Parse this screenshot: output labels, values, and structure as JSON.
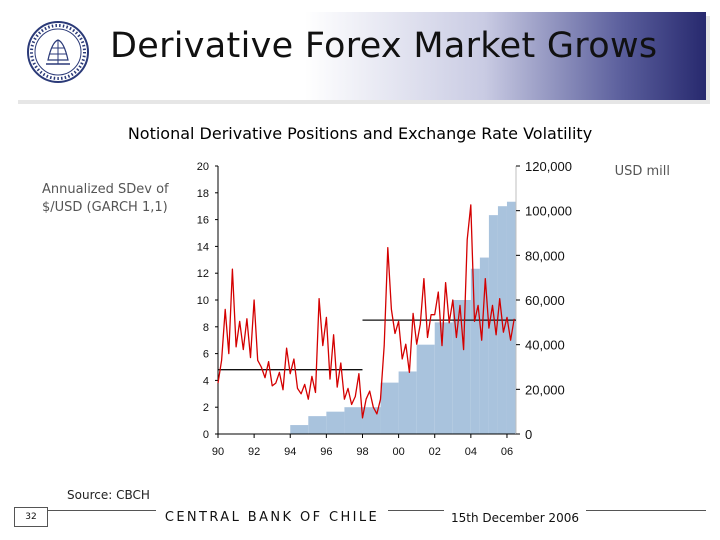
{
  "slide": {
    "title": "Derivative Forex Market Grows",
    "chart_title": "Notional Derivative Positions and Exchange Rate Volatility",
    "left_unit_line1": "Annualized SDev of",
    "left_unit_line2": "$/USD (GARCH 1,1)",
    "right_unit": "USD mill",
    "source": "Source: CBCH",
    "page_number": "32",
    "bank_name": "CENTRAL BANK OF CHILE",
    "date": "15th December 2006"
  },
  "colors": {
    "volatility_line": "#d40000",
    "positions_bars": "#a9c3dd",
    "average_lines": "#111111",
    "title_band_dark": "#27296e"
  },
  "chart_data": {
    "type": "bar+line",
    "title": "Notional Derivative Positions and Exchange Rate Volatility",
    "x_ticks": [
      "90",
      "92",
      "94",
      "96",
      "98",
      "00",
      "02",
      "04",
      "06"
    ],
    "y_left": {
      "label": "Annualized SDev of $/USD (GARCH 1,1)",
      "range": [
        0,
        20
      ],
      "ticks": [
        "0",
        "2",
        "4",
        "6",
        "8",
        "10",
        "12",
        "14",
        "16",
        "18",
        "20"
      ]
    },
    "y_right": {
      "label": "USD mill",
      "range": [
        0,
        120000
      ],
      "ticks": [
        "0",
        "20,000",
        "40,000",
        "60,000",
        "80,000",
        "100,000",
        "120,000"
      ]
    },
    "bars_usd_mill": [
      {
        "start": 1994.0,
        "end": 1995.0,
        "value": 4000
      },
      {
        "start": 1995.0,
        "end": 1996.0,
        "value": 8000
      },
      {
        "start": 1996.0,
        "end": 1997.0,
        "value": 10000
      },
      {
        "start": 1997.0,
        "end": 1998.0,
        "value": 12000
      },
      {
        "start": 1998.0,
        "end": 1999.0,
        "value": 12000
      },
      {
        "start": 1999.0,
        "end": 2000.0,
        "value": 23000
      },
      {
        "start": 2000.0,
        "end": 2001.0,
        "value": 28000
      },
      {
        "start": 2001.0,
        "end": 2002.0,
        "value": 40000
      },
      {
        "start": 2002.0,
        "end": 2003.0,
        "value": 50000
      },
      {
        "start": 2003.0,
        "end": 2004.0,
        "value": 60000
      },
      {
        "start": 2004.0,
        "end": 2004.5,
        "value": 74000
      },
      {
        "start": 2004.5,
        "end": 2005.0,
        "value": 79000
      },
      {
        "start": 2005.0,
        "end": 2005.5,
        "value": 98000
      },
      {
        "start": 2005.5,
        "end": 2006.0,
        "value": 102000
      },
      {
        "start": 2006.0,
        "end": 2006.5,
        "value": 104000
      }
    ],
    "volatility_pct": [
      [
        1990.0,
        3.8
      ],
      [
        1990.2,
        5.5
      ],
      [
        1990.4,
        9.3
      ],
      [
        1990.6,
        6.0
      ],
      [
        1990.8,
        12.3
      ],
      [
        1991.0,
        6.5
      ],
      [
        1991.2,
        8.4
      ],
      [
        1991.4,
        6.3
      ],
      [
        1991.6,
        8.6
      ],
      [
        1991.8,
        5.7
      ],
      [
        1992.0,
        10.0
      ],
      [
        1992.2,
        5.5
      ],
      [
        1992.4,
        5.0
      ],
      [
        1992.6,
        4.2
      ],
      [
        1992.8,
        5.4
      ],
      [
        1993.0,
        3.6
      ],
      [
        1993.2,
        3.8
      ],
      [
        1993.4,
        4.6
      ],
      [
        1993.6,
        3.3
      ],
      [
        1993.8,
        6.4
      ],
      [
        1994.0,
        4.5
      ],
      [
        1994.2,
        5.6
      ],
      [
        1994.4,
        3.4
      ],
      [
        1994.6,
        3.0
      ],
      [
        1994.8,
        3.7
      ],
      [
        1995.0,
        2.6
      ],
      [
        1995.2,
        4.3
      ],
      [
        1995.4,
        3.1
      ],
      [
        1995.6,
        10.1
      ],
      [
        1995.8,
        6.6
      ],
      [
        1996.0,
        8.7
      ],
      [
        1996.2,
        4.1
      ],
      [
        1996.4,
        7.4
      ],
      [
        1996.6,
        3.5
      ],
      [
        1996.8,
        5.3
      ],
      [
        1997.0,
        2.6
      ],
      [
        1997.2,
        3.4
      ],
      [
        1997.4,
        2.2
      ],
      [
        1997.6,
        2.8
      ],
      [
        1997.8,
        4.5
      ],
      [
        1998.0,
        1.2
      ],
      [
        1998.2,
        2.6
      ],
      [
        1998.4,
        3.2
      ],
      [
        1998.6,
        2.0
      ],
      [
        1998.8,
        1.5
      ],
      [
        1999.0,
        2.6
      ],
      [
        1999.2,
        6.6
      ],
      [
        1999.4,
        13.9
      ],
      [
        1999.6,
        9.3
      ],
      [
        1999.8,
        7.5
      ],
      [
        2000.0,
        8.4
      ],
      [
        2000.2,
        5.6
      ],
      [
        2000.4,
        6.7
      ],
      [
        2000.6,
        4.6
      ],
      [
        2000.8,
        9.0
      ],
      [
        2001.0,
        6.7
      ],
      [
        2001.2,
        8.2
      ],
      [
        2001.4,
        11.6
      ],
      [
        2001.6,
        7.2
      ],
      [
        2001.8,
        8.9
      ],
      [
        2002.0,
        8.9
      ],
      [
        2002.2,
        10.6
      ],
      [
        2002.4,
        6.6
      ],
      [
        2002.6,
        11.3
      ],
      [
        2002.8,
        8.3
      ],
      [
        2003.0,
        10.0
      ],
      [
        2003.2,
        7.2
      ],
      [
        2003.4,
        9.6
      ],
      [
        2003.6,
        6.3
      ],
      [
        2003.8,
        14.5
      ],
      [
        2004.0,
        17.1
      ],
      [
        2004.2,
        8.4
      ],
      [
        2004.4,
        9.6
      ],
      [
        2004.6,
        7.0
      ],
      [
        2004.8,
        11.6
      ],
      [
        2005.0,
        7.9
      ],
      [
        2005.2,
        9.6
      ],
      [
        2005.4,
        7.4
      ],
      [
        2005.6,
        10.1
      ],
      [
        2005.8,
        7.6
      ],
      [
        2006.0,
        8.7
      ],
      [
        2006.2,
        7.0
      ],
      [
        2006.4,
        8.6
      ]
    ],
    "average_lines": [
      {
        "start": 1990.0,
        "end": 1998.0,
        "value": 4.8
      },
      {
        "start": 1998.0,
        "end": 2006.5,
        "value": 8.5
      }
    ]
  }
}
